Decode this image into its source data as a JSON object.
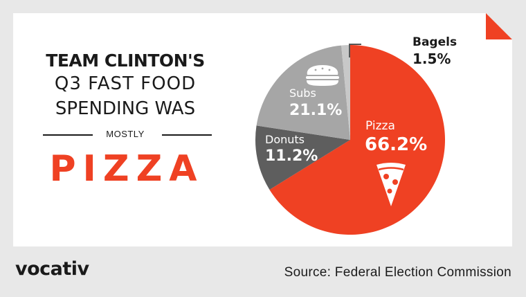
{
  "headline": {
    "line1": "TEAM CLINTON'S",
    "line2": "Q3 FAST FOOD",
    "line3": "SPENDING WAS",
    "connector": "MOSTLY",
    "emphasis": "PIZZA"
  },
  "footer": {
    "logo": "vocativ",
    "source": "Source: Federal Election Commission"
  },
  "colors": {
    "accent": "#ef4123",
    "pizza": "#ef4123",
    "donuts": "#5e5e5e",
    "subs": "#a6a6a6",
    "bagels": "#c8c8c8",
    "background": "#e8e8e8",
    "card": "#ffffff"
  },
  "icons": [
    "pizza-slice-icon",
    "sub-sandwich-icon",
    "corner-triangle-icon"
  ],
  "chart_data": {
    "type": "pie",
    "title": "",
    "slices": [
      {
        "name": "Pizza",
        "value": 66.2,
        "label": "66.2%"
      },
      {
        "name": "Donuts",
        "value": 11.2,
        "label": "11.2%"
      },
      {
        "name": "Subs",
        "value": 21.1,
        "label": "21.1%"
      },
      {
        "name": "Bagels",
        "value": 1.5,
        "label": "1.5%"
      }
    ]
  }
}
